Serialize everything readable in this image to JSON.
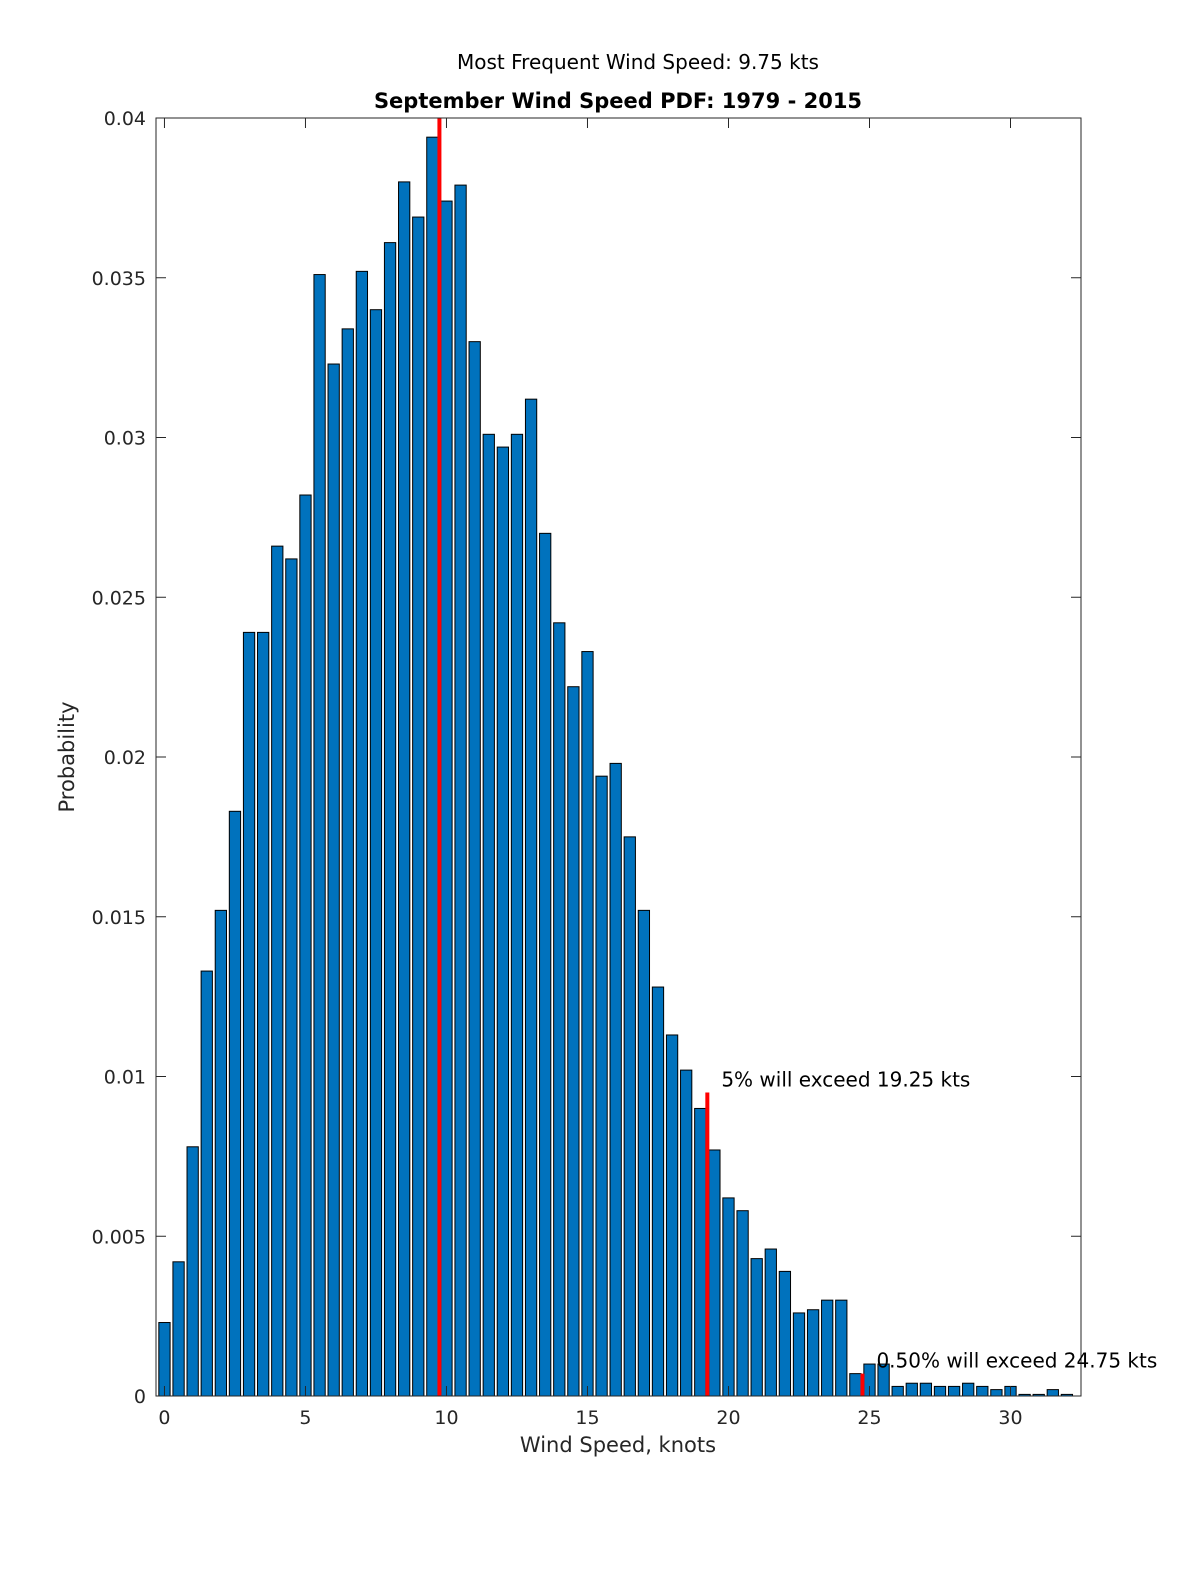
{
  "chart_data": {
    "type": "bar",
    "subtitle": "Most Frequent Wind Speed: 9.75 kts",
    "title": "September Wind Speed PDF: 1979 - 2015",
    "xlabel": "Wind Speed, knots",
    "ylabel": "Probability",
    "xlim": [
      -0.3,
      32.5
    ],
    "ylim": [
      0,
      0.04
    ],
    "xticks": [
      0,
      5,
      10,
      15,
      20,
      25,
      30
    ],
    "xtick_labels": [
      "0",
      "5",
      "10",
      "15",
      "20",
      "25",
      "30"
    ],
    "yticks": [
      0,
      0.005,
      0.01,
      0.015,
      0.02,
      0.025,
      0.03,
      0.035,
      0.04
    ],
    "ytick_labels": [
      "0",
      "0.005",
      "0.01",
      "0.015",
      "0.02",
      "0.025",
      "0.03",
      "0.035",
      "0.04"
    ],
    "bin_width": 0.5,
    "x": [
      0,
      0.5,
      1,
      1.5,
      2,
      2.5,
      3,
      3.5,
      4,
      4.5,
      5,
      5.5,
      6,
      6.5,
      7,
      7.5,
      8,
      8.5,
      9,
      9.5,
      10,
      10.5,
      11,
      11.5,
      12,
      12.5,
      13,
      13.5,
      14,
      14.5,
      15,
      15.5,
      16,
      16.5,
      17,
      17.5,
      18,
      18.5,
      19,
      19.5,
      20,
      20.5,
      21,
      21.5,
      22,
      22.5,
      23,
      23.5,
      24,
      24.5,
      25,
      25.5,
      26,
      26.5,
      27,
      27.5,
      28,
      28.5,
      29,
      29.5,
      30,
      30.5,
      31,
      31.5,
      32
    ],
    "values": [
      0.0023,
      0.0042,
      0.0078,
      0.0133,
      0.0152,
      0.0183,
      0.0239,
      0.0239,
      0.0266,
      0.0262,
      0.0282,
      0.0351,
      0.0323,
      0.0334,
      0.0352,
      0.034,
      0.0361,
      0.038,
      0.0369,
      0.0394,
      0.0374,
      0.0379,
      0.033,
      0.0301,
      0.0297,
      0.0301,
      0.0312,
      0.027,
      0.0242,
      0.0222,
      0.0233,
      0.0194,
      0.0198,
      0.0175,
      0.0152,
      0.0128,
      0.0113,
      0.0102,
      0.009,
      0.0077,
      0.0062,
      0.0058,
      0.0043,
      0.0046,
      0.0039,
      0.0026,
      0.0027,
      0.003,
      0.003,
      0.0007,
      0.001,
      0.001,
      0.0003,
      0.0004,
      0.0004,
      0.0003,
      0.0003,
      0.0004,
      0.0003,
      0.0002,
      0.0003,
      5e-05,
      5e-05,
      0.0002,
      5e-05
    ],
    "bar_color": "#0072BD",
    "markers": [
      {
        "x": 9.75,
        "y": 0.04,
        "label": "",
        "color": "#FF0000"
      },
      {
        "x": 19.25,
        "y": 0.0095,
        "label": "5% will exceed 19.25 kts",
        "color": "#FF0000"
      },
      {
        "x": 24.75,
        "y": 0.0007,
        "label": "0.50% will exceed 24.75 kts",
        "color": "#FF0000"
      }
    ]
  }
}
